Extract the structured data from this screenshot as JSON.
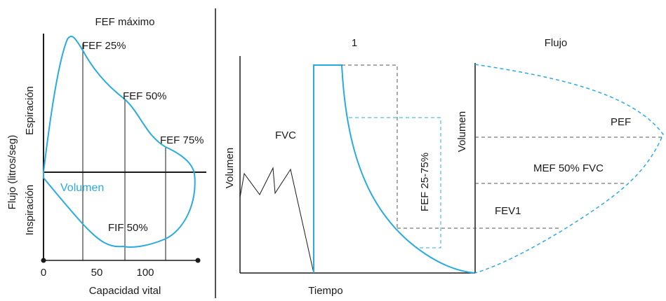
{
  "left_panel": {
    "title": "FEF máximo",
    "y_axis_label": "Flujo (litros/seg)",
    "upper_label": "Espiración",
    "lower_label": "Inspiración",
    "curve_label": "Volumen",
    "markers": {
      "fef25": "FEF 25%",
      "fef50": "FEF 50%",
      "fef75": "FEF 75%",
      "fif50": "FIF 50%"
    },
    "x_ticks": [
      "0",
      "50",
      "100"
    ],
    "x_axis_label": "Capacidad vital"
  },
  "middle_panel": {
    "top_label": "1",
    "y_axis_label": "Volumen",
    "fvc_label": "FVC",
    "band_label": "FEF 25-75%",
    "x_axis_label": "Tiempo"
  },
  "right_panel": {
    "top_label": "Flujo",
    "y_axis_label": "Volumen",
    "lines": {
      "pef": "PEF",
      "mef50": "MEF 50% FVC",
      "fev1": "FEV1"
    }
  },
  "colors": {
    "curve": "#29abe2",
    "ink": "#1a1a1a",
    "dashed": "#555555"
  }
}
